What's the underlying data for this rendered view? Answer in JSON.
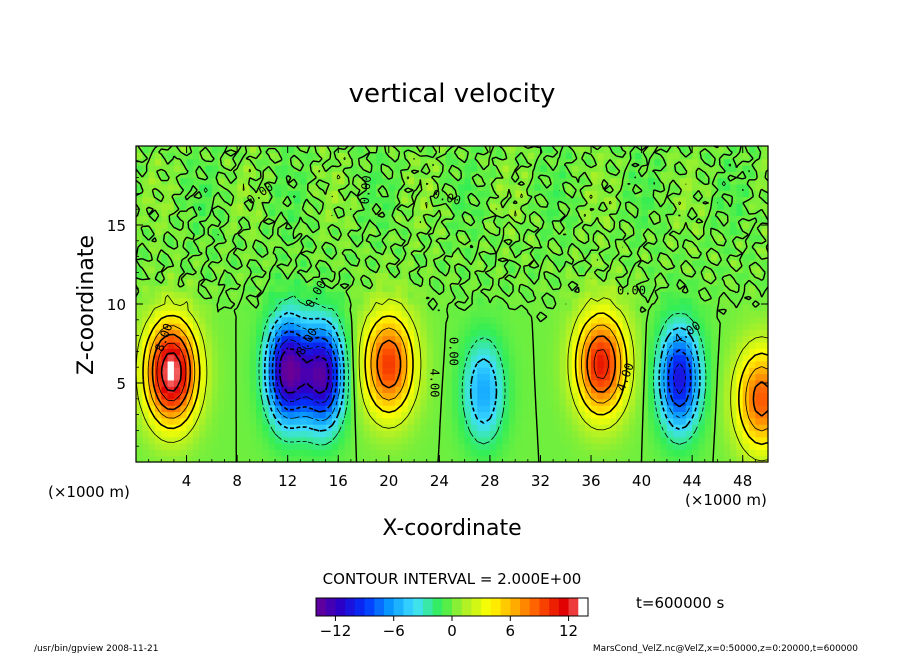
{
  "chart_data": {
    "type": "heatmap",
    "title": "vertical velocity",
    "xlabel": "X-coordinate",
    "ylabel": "Z-coordinate",
    "x_unit_left": "(×1000 m)",
    "x_unit_right": "(×1000 m)",
    "xlim": [
      0,
      50
    ],
    "ylim": [
      0,
      20
    ],
    "x_ticks": [
      4,
      8,
      12,
      16,
      20,
      24,
      28,
      32,
      36,
      40,
      44,
      48
    ],
    "y_ticks": [
      5,
      10,
      15
    ],
    "contour_interval_text": "CONTOUR INTERVAL = 2.000E+00",
    "contour_labels": [
      "8.00",
      "0.00",
      "0.00",
      "0.00",
      "8.00",
      "4.00",
      "0.00",
      "0.00",
      "4.00",
      "0.00",
      "4.00"
    ],
    "colorbar": {
      "vmin": -14,
      "vmax": 14,
      "ticks": [
        -12,
        -6,
        0,
        6,
        12
      ],
      "colors": [
        "#6a0095",
        "#2a00c8",
        "#0033ff",
        "#0a9bff",
        "#40e0ff",
        "#33ee55",
        "#aaf028",
        "#ffff00",
        "#ffb000",
        "#ff5500",
        "#e00000",
        "#ff9090"
      ]
    },
    "features": [
      {
        "type": "updraft",
        "x": 2.8,
        "z": 5.7,
        "peak": 14
      },
      {
        "type": "downdraft",
        "x": 12,
        "z": 5.8,
        "peak": -14
      },
      {
        "type": "downdraft",
        "x": 14.8,
        "z": 5.5,
        "peak": -13
      },
      {
        "type": "updraft",
        "x": 20,
        "z": 6.2,
        "peak": 10
      },
      {
        "type": "downdraft",
        "x": 27.5,
        "z": 4.5,
        "peak": -6
      },
      {
        "type": "updraft",
        "x": 36.8,
        "z": 6.2,
        "peak": 11
      },
      {
        "type": "downdraft",
        "x": 43,
        "z": 5.3,
        "peak": -11
      },
      {
        "type": "updraft",
        "x": 49.5,
        "z": 4,
        "peak": 9
      }
    ],
    "grid": false,
    "legend": "bottom"
  },
  "time_label": "t=600000 s",
  "footer_left": "/usr/bin/gpview   2008-11-21",
  "footer_right": "MarsCond_VelZ.nc@VelZ,x=0:50000,z=0:20000,t=600000"
}
